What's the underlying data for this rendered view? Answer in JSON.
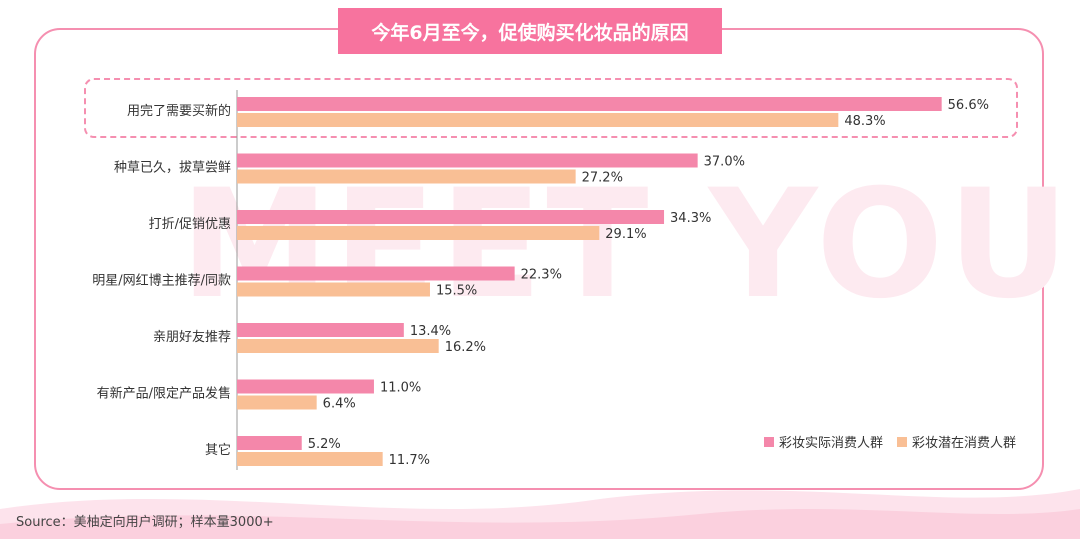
{
  "title": "今年6月至今，促使购买化妆品的原因",
  "watermark": "MEET YOU",
  "source": "Source：美柚定向用户调研；样本量3000+",
  "colors": {
    "actual": "#f487aa",
    "potential": "#f9bf95",
    "frame": "#f58fb0",
    "title_bg": "#f7739e"
  },
  "chart_data": {
    "type": "bar",
    "orientation": "horizontal",
    "categories": [
      "用完了需要买新的",
      "种草已久，拔草尝鲜",
      "打折/促销优惠",
      "明星/网红博主推荐/同款",
      "亲朋好友推荐",
      "有新产品/限定产品发售",
      "其它"
    ],
    "series": [
      {
        "name": "彩妆实际消费人群",
        "values": [
          56.6,
          37.0,
          34.3,
          22.3,
          13.4,
          11.0,
          5.2
        ],
        "labels": [
          "56.6%",
          "37.0%",
          "34.3%",
          "22.3%",
          "13.4%",
          "11.0%",
          "5.2%"
        ]
      },
      {
        "name": "彩妆潜在消费人群",
        "values": [
          48.3,
          27.2,
          29.1,
          15.5,
          16.2,
          6.4,
          11.7
        ],
        "labels": [
          "48.3%",
          "27.2%",
          "29.1%",
          "15.5%",
          "16.2%",
          "6.4%",
          "11.7%"
        ]
      }
    ],
    "value_unit": "%",
    "xlim": [
      0,
      60
    ],
    "highlighted_category": "用完了需要买新的",
    "legend_position": "bottom-right",
    "grid": false
  }
}
